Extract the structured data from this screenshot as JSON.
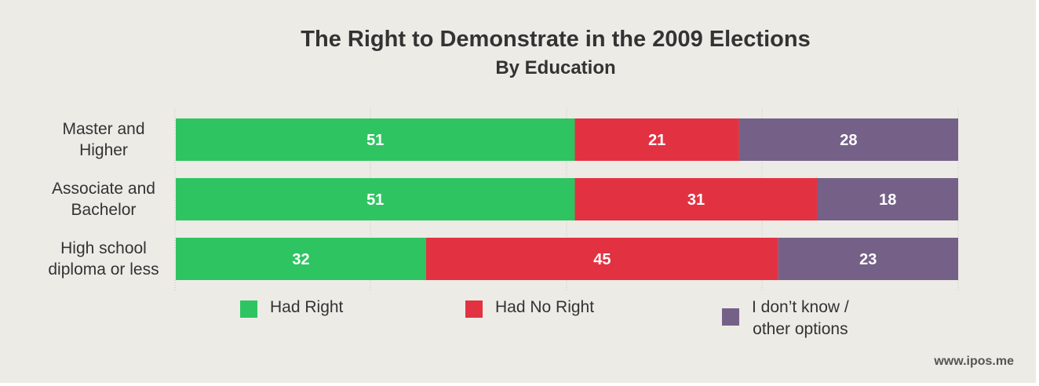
{
  "chart_data": {
    "type": "bar",
    "orientation": "horizontal",
    "stacked": true,
    "title": "The Right to Demonstrate in the 2009 Elections",
    "subtitle": "By Education",
    "categories": [
      [
        "Master and",
        "Higher"
      ],
      [
        "Associate and",
        "Bachelor"
      ],
      [
        "High school",
        "diploma or less"
      ]
    ],
    "series": [
      {
        "name": "Had Right",
        "color": "#2fc462",
        "values": [
          51,
          51,
          32
        ]
      },
      {
        "name": "Had No Right",
        "color": "#e23241",
        "values": [
          21,
          31,
          45
        ]
      },
      {
        "name": "I don’t know / other options",
        "color": "#756188",
        "values": [
          28,
          18,
          23
        ]
      }
    ],
    "xlim": [
      0,
      100
    ],
    "grid": true,
    "legend_position": "bottom"
  },
  "legend": [
    {
      "line1": "Had Right",
      "line2": ""
    },
    {
      "line1": "Had No Right",
      "line2": ""
    },
    {
      "line1": "I don’t know /",
      "line2": "other options"
    }
  ],
  "watermark": "www.ipos.me"
}
